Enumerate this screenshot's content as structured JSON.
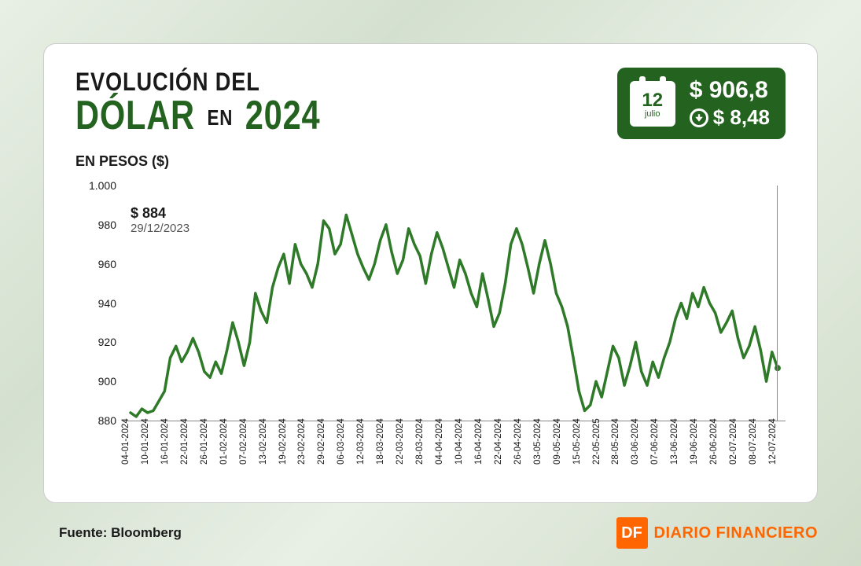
{
  "title": {
    "line1": "EVOLUCIÓN DEL",
    "word_dolar": "DÓLAR",
    "word_en": "EN",
    "word_year": "2024"
  },
  "subtitle": "EN PESOS ($)",
  "badge": {
    "bg_color": "#24631f",
    "calendar": {
      "day": "12",
      "month": "julio"
    },
    "value_main": "$ 906,8",
    "value_change": "$ 8,48",
    "change_direction": "down"
  },
  "annotation": {
    "value": "$ 884",
    "date": "29/12/2023"
  },
  "chart": {
    "type": "line",
    "line_color": "#2e7a28",
    "line_width": 3.5,
    "background_color": "#ffffff",
    "ylim": [
      880,
      1000
    ],
    "yticks": [
      880,
      900,
      920,
      940,
      960,
      980,
      1000
    ],
    "ytick_labels": [
      "880",
      "900",
      "920",
      "940",
      "960",
      "980",
      "1.000"
    ],
    "xlabels": [
      "04-01-2024",
      "10-01-2024",
      "16-01-2024",
      "22-01-2024",
      "26-01-2024",
      "01-02-2024",
      "07-02-2024",
      "13-02-2024",
      "19-02-2024",
      "23-02-2024",
      "29-02-2024",
      "06-03-2024",
      "12-03-2024",
      "18-03-2024",
      "22-03-2024",
      "28-03-2024",
      "04-04-2024",
      "10-04-2024",
      "16-04-2024",
      "22-04-2024",
      "26-04-2024",
      "03-05-2024",
      "09-05-2024",
      "15-05-2024",
      "22-05-2025",
      "28-05-2024",
      "03-06-2024",
      "07-06-2024",
      "13-06-2024",
      "19-06-2024",
      "26-06-2024",
      "02-07-2024",
      "08-07-2024",
      "12-07-2024"
    ],
    "series": [
      884,
      882,
      886,
      884,
      885,
      890,
      895,
      912,
      918,
      910,
      915,
      922,
      915,
      905,
      902,
      910,
      904,
      916,
      930,
      920,
      908,
      920,
      945,
      936,
      930,
      948,
      958,
      965,
      950,
      970,
      960,
      955,
      948,
      960,
      982,
      978,
      965,
      970,
      985,
      975,
      965,
      958,
      952,
      960,
      972,
      980,
      966,
      955,
      962,
      978,
      970,
      964,
      950,
      965,
      976,
      968,
      958,
      948,
      962,
      955,
      945,
      938,
      955,
      942,
      928,
      935,
      950,
      970,
      978,
      970,
      958,
      945,
      960,
      972,
      960,
      945,
      938,
      928,
      912,
      895,
      885,
      888,
      900,
      892,
      905,
      918,
      912,
      898,
      908,
      920,
      905,
      898,
      910,
      902,
      912,
      920,
      932,
      940,
      932,
      945,
      938,
      948,
      940,
      935,
      925,
      930,
      936,
      922,
      912,
      918,
      928,
      916,
      900,
      915,
      906.8
    ],
    "end_point_marker": true,
    "end_point_color": "#2e7a28"
  },
  "source": "Fuente: Bloomberg",
  "brand": {
    "square": "DF",
    "text": "DIARIO FINANCIERO",
    "color": "#ff6600"
  }
}
